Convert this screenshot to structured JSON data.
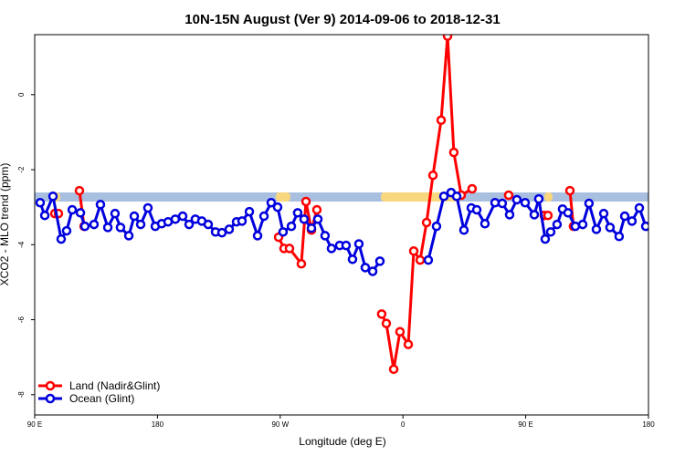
{
  "chart_data": {
    "type": "line",
    "title": "10N-15N August (Ver 9)   2014-09-06 to 2018-12-31",
    "x_label": "Longitude (deg E)",
    "y_label": "XCO2 - MLO trend (ppm)",
    "xlim": [
      90,
      540
    ],
    "xticks": [
      {
        "value": 90,
        "label": "90 E"
      },
      180,
      {
        "value": 270,
        "label": "90 W"
      },
      {
        "value": 360,
        "label": "0"
      },
      {
        "value": 450,
        "label": "90 E"
      },
      {
        "value": 540,
        "label": "180"
      }
    ],
    "ylim": [
      -8.54,
      1.6
    ],
    "yticks": [
      0,
      -2,
      -4,
      -6,
      -8
    ],
    "legend": "bottom-left",
    "series": [
      {
        "name": "Land (Nadir&Glint)",
        "color": "#ff0000",
        "x": [
          104.7,
          107.4,
          null,
          122.8,
          126.2,
          null,
          268.8,
          272.8,
          276.8,
          285.5,
          288.9,
          292.9,
          296.9,
          null,
          344.4,
          347.8,
          353.2,
          357.8,
          363.9,
          367.9,
          372.6,
          377.3,
          382.0,
          388.0,
          392.7,
          397.3,
          402.7,
          410.7,
          null,
          437.5,
          null,
          463.6,
          466.3,
          null,
          482.4,
          485.0
        ],
        "values": [
          -3.17,
          -3.17,
          null,
          -2.56,
          -3.51,
          null,
          -3.8,
          -4.1,
          -4.1,
          -4.51,
          -2.85,
          -3.61,
          -3.07,
          null,
          -5.85,
          -6.1,
          -7.32,
          -6.32,
          -6.66,
          -4.17,
          -4.41,
          -3.41,
          -2.15,
          -0.68,
          1.56,
          -1.54,
          -2.68,
          -2.51,
          null,
          -2.68,
          null,
          -3.22,
          -3.22,
          null,
          -2.56,
          -3.51
        ]
      },
      {
        "name": "Ocean (Glint)",
        "color": "#0000dd",
        "x": [
          94.0,
          97.4,
          103.4,
          109.4,
          113.4,
          117.5,
          123.5,
          126.8,
          133.5,
          138.2,
          143.6,
          148.9,
          152.9,
          159.0,
          163.0,
          167.7,
          173.0,
          178.4,
          183.1,
          187.8,
          193.1,
          198.5,
          203.2,
          207.8,
          212.5,
          217.2,
          222.6,
          227.3,
          232.6,
          238.0,
          242.0,
          247.4,
          253.4,
          258.1,
          263.4,
          268.1,
          272.1,
          278.2,
          282.8,
          287.5,
          292.9,
          297.6,
          302.9,
          307.6,
          313.6,
          318.3,
          323.0,
          327.7,
          332.4,
          337.8,
          343.1,
          null,
          378.6,
          384.6,
          390.0,
          395.3,
          399.4,
          404.7,
          410.1,
          414.1,
          420.1,
          427.5,
          432.8,
          438.2,
          443.5,
          449.6,
          456.3,
          459.6,
          464.3,
          468.3,
          473.0,
          477.0,
          481.0,
          486.4,
          491.8,
          496.4,
          501.8,
          507.2,
          511.8,
          518.5,
          522.6,
          527.9,
          533.3,
          538.0
        ],
        "values": [
          -2.88,
          -3.22,
          -2.71,
          -3.85,
          -3.63,
          -3.07,
          -3.15,
          -3.51,
          -3.46,
          -2.93,
          -3.54,
          -3.17,
          -3.54,
          -3.76,
          -3.24,
          -3.46,
          -3.02,
          -3.51,
          -3.44,
          -3.39,
          -3.32,
          -3.24,
          -3.46,
          -3.32,
          -3.37,
          -3.46,
          -3.66,
          -3.68,
          -3.59,
          -3.39,
          -3.37,
          -3.12,
          -3.76,
          -3.24,
          -2.88,
          -3.0,
          -3.66,
          -3.51,
          -3.15,
          -3.32,
          -3.56,
          -3.32,
          -3.76,
          -4.1,
          -4.02,
          -4.02,
          -4.39,
          -3.98,
          -4.61,
          -4.71,
          -4.44,
          null,
          -4.41,
          -3.51,
          -2.71,
          -2.61,
          -2.71,
          -3.61,
          -3.02,
          -3.07,
          -3.44,
          -2.88,
          -2.9,
          -3.2,
          -2.8,
          -2.88,
          -3.2,
          -2.78,
          -3.85,
          -3.66,
          -3.46,
          -3.05,
          -3.15,
          -3.51,
          -3.46,
          -2.9,
          -3.59,
          -3.17,
          -3.54,
          -3.78,
          -3.24,
          -3.37,
          -3.02,
          -3.51
        ]
      }
    ]
  }
}
